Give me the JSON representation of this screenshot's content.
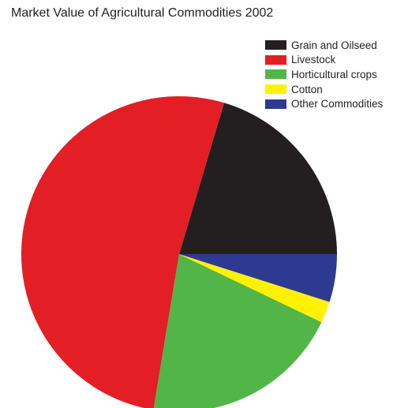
{
  "chart_data": {
    "type": "pie",
    "title": "Market Value of Agricultural Commodities 2002",
    "legend_position": "top-right",
    "slices": [
      {
        "label": "Grain and Oilseed",
        "value": 20.4,
        "color": "#231f20"
      },
      {
        "label": "Livestock",
        "value": 52.0,
        "color": "#e31e24"
      },
      {
        "label": "Horticultural crops",
        "value": 20.5,
        "color": "#52b548"
      },
      {
        "label": "Cotton",
        "value": 2.2,
        "color": "#fff200"
      },
      {
        "label": "Other Commodities",
        "value": 4.9,
        "color": "#2e3a92"
      }
    ]
  }
}
